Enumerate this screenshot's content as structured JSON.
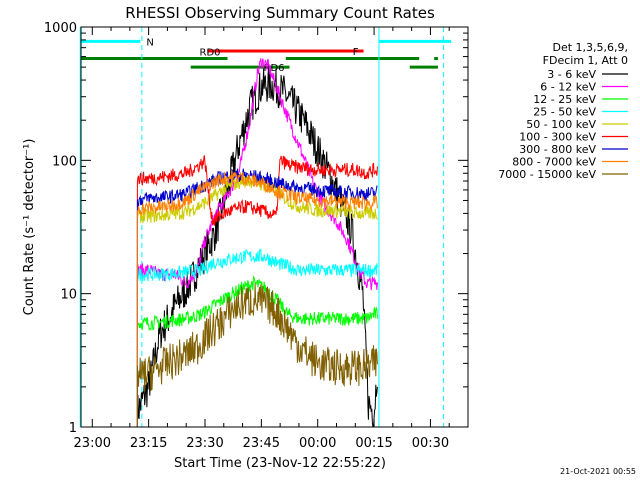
{
  "chart_data": {
    "type": "line",
    "title": "RHESSI Observing Summary Count Rates",
    "xlabel": "Start Time (23-Nov-12 22:55:22)",
    "ylabel": "Count Rate (s⁻¹ detector⁻¹)",
    "yscale": "log",
    "ylim": [
      1,
      1000
    ],
    "xlim_minutes": [
      -3,
      100
    ],
    "x_ticks": [
      {
        "t": 0,
        "label": "23:00"
      },
      {
        "t": 15,
        "label": "23:15"
      },
      {
        "t": 30,
        "label": "23:30"
      },
      {
        "t": 45,
        "label": "23:45"
      },
      {
        "t": 60,
        "label": "00:00"
      },
      {
        "t": 75,
        "label": "00:15"
      },
      {
        "t": 90,
        "label": "00:30"
      }
    ],
    "y_ticks": [
      {
        "v": 1,
        "label": "1"
      },
      {
        "v": 10,
        "label": "10"
      },
      {
        "v": 100,
        "label": "100"
      },
      {
        "v": 1000,
        "label": "1000"
      }
    ],
    "legend_header": [
      "Det 1,3,5,6,9,",
      "FDecim 1, Att 0"
    ],
    "series": [
      {
        "name": "3 - 6 keV",
        "color": "#000000",
        "points": [
          [
            12,
            1.3
          ],
          [
            15,
            2
          ],
          [
            18,
            5
          ],
          [
            22,
            8
          ],
          [
            26,
            12
          ],
          [
            30,
            20
          ],
          [
            33,
            30
          ],
          [
            36,
            60
          ],
          [
            39,
            130
          ],
          [
            42,
            250
          ],
          [
            45,
            360
          ],
          [
            48,
            370
          ],
          [
            51,
            320
          ],
          [
            54,
            250
          ],
          [
            57,
            180
          ],
          [
            60,
            120
          ],
          [
            63,
            80
          ],
          [
            66,
            50
          ],
          [
            69,
            30
          ],
          [
            72,
            10
          ],
          [
            73.5,
            1.5
          ],
          [
            75,
            1.3
          ],
          [
            76,
            3
          ]
        ]
      },
      {
        "name": "6 - 12 keV",
        "color": "#ff00ff",
        "points": [
          [
            12,
            15
          ],
          [
            15,
            15
          ],
          [
            18,
            14
          ],
          [
            22,
            14
          ],
          [
            25,
            12
          ],
          [
            28,
            15
          ],
          [
            30,
            25
          ],
          [
            33,
            40
          ],
          [
            36,
            55
          ],
          [
            39,
            80
          ],
          [
            42,
            200
          ],
          [
            44,
            450
          ],
          [
            45,
            560
          ],
          [
            47,
            500
          ],
          [
            50,
            300
          ],
          [
            53,
            180
          ],
          [
            56,
            110
          ],
          [
            59,
            65
          ],
          [
            62,
            45
          ],
          [
            65,
            35
          ],
          [
            68,
            25
          ],
          [
            71,
            15
          ],
          [
            73,
            12
          ],
          [
            75,
            12
          ],
          [
            76,
            12
          ]
        ]
      },
      {
        "name": "12 - 25 keV",
        "color": "#00ff00",
        "points": [
          [
            12,
            6
          ],
          [
            15,
            6
          ],
          [
            20,
            6.2
          ],
          [
            25,
            6.5
          ],
          [
            29,
            7
          ],
          [
            32,
            8
          ],
          [
            36,
            9.5
          ],
          [
            40,
            11
          ],
          [
            43,
            12
          ],
          [
            46,
            11
          ],
          [
            49,
            9
          ],
          [
            52,
            7
          ],
          [
            55,
            6.5
          ],
          [
            60,
            6.5
          ],
          [
            65,
            6.5
          ],
          [
            70,
            6.5
          ],
          [
            73,
            6.5
          ],
          [
            75,
            7
          ],
          [
            76,
            7
          ]
        ]
      },
      {
        "name": "25 - 50 keV",
        "color": "#00ffff",
        "points": [
          [
            12,
            14
          ],
          [
            15,
            14
          ],
          [
            20,
            14
          ],
          [
            25,
            14.5
          ],
          [
            29,
            15
          ],
          [
            32,
            17
          ],
          [
            36,
            18
          ],
          [
            40,
            19
          ],
          [
            43,
            19
          ],
          [
            46,
            19
          ],
          [
            49,
            17
          ],
          [
            52,
            16
          ],
          [
            55,
            15
          ],
          [
            60,
            15
          ],
          [
            65,
            15
          ],
          [
            70,
            15
          ],
          [
            73,
            15
          ],
          [
            75,
            15
          ],
          [
            76,
            15
          ]
        ]
      },
      {
        "name": "50 - 100 keV",
        "color": "#cccc00",
        "points": [
          [
            12,
            38
          ],
          [
            15,
            38
          ],
          [
            20,
            39
          ],
          [
            25,
            41
          ],
          [
            28,
            45
          ],
          [
            31,
            50
          ],
          [
            34,
            58
          ],
          [
            37,
            65
          ],
          [
            40,
            70
          ],
          [
            43,
            70
          ],
          [
            46,
            65
          ],
          [
            49,
            58
          ],
          [
            52,
            50
          ],
          [
            55,
            45
          ],
          [
            60,
            42
          ],
          [
            65,
            42
          ],
          [
            70,
            40
          ],
          [
            73,
            40
          ],
          [
            75,
            40
          ],
          [
            76,
            40
          ]
        ]
      },
      {
        "name": "100 - 300 keV",
        "color": "#ff0000",
        "points": [
          [
            12,
            73
          ],
          [
            15,
            73
          ],
          [
            20,
            76
          ],
          [
            25,
            80
          ],
          [
            28,
            90
          ],
          [
            30,
            100
          ],
          [
            31,
            55
          ],
          [
            32,
            35
          ],
          [
            35,
            40
          ],
          [
            38,
            43
          ],
          [
            41,
            45
          ],
          [
            44,
            43
          ],
          [
            47,
            40
          ],
          [
            49,
            38
          ],
          [
            50,
            100
          ],
          [
            53,
            90
          ],
          [
            56,
            88
          ],
          [
            60,
            85
          ],
          [
            65,
            85
          ],
          [
            70,
            85
          ],
          [
            73,
            80
          ],
          [
            75,
            85
          ],
          [
            76,
            85
          ]
        ]
      },
      {
        "name": "300 - 800 keV",
        "color": "#0000cc",
        "points": [
          [
            12,
            50
          ],
          [
            15,
            52
          ],
          [
            20,
            53
          ],
          [
            25,
            56
          ],
          [
            28,
            62
          ],
          [
            31,
            68
          ],
          [
            34,
            74
          ],
          [
            37,
            77
          ],
          [
            40,
            78
          ],
          [
            43,
            76
          ],
          [
            46,
            72
          ],
          [
            49,
            68
          ],
          [
            52,
            65
          ],
          [
            55,
            62
          ],
          [
            60,
            60
          ],
          [
            65,
            58
          ],
          [
            70,
            57
          ],
          [
            73,
            56
          ],
          [
            75,
            57
          ],
          [
            76,
            58
          ]
        ]
      },
      {
        "name": "800 - 7000 keV",
        "color": "#ff8000",
        "points": [
          [
            12,
            43
          ],
          [
            15,
            44
          ],
          [
            20,
            45
          ],
          [
            25,
            50
          ],
          [
            28,
            58
          ],
          [
            31,
            65
          ],
          [
            34,
            72
          ],
          [
            37,
            75
          ],
          [
            40,
            74
          ],
          [
            43,
            70
          ],
          [
            46,
            66
          ],
          [
            49,
            60
          ],
          [
            52,
            55
          ],
          [
            55,
            52
          ],
          [
            60,
            50
          ],
          [
            65,
            49
          ],
          [
            70,
            48
          ],
          [
            73,
            48
          ],
          [
            75,
            48
          ],
          [
            76,
            48
          ]
        ]
      },
      {
        "name": "7000 - 15000 keV",
        "color": "#806000",
        "points": [
          [
            12,
            2.4
          ],
          [
            15,
            2.5
          ],
          [
            20,
            3
          ],
          [
            25,
            3.5
          ],
          [
            28,
            4
          ],
          [
            31,
            5
          ],
          [
            34,
            6
          ],
          [
            37,
            7.5
          ],
          [
            40,
            8.5
          ],
          [
            43,
            9
          ],
          [
            46,
            8.5
          ],
          [
            49,
            7.5
          ],
          [
            52,
            5.5
          ],
          [
            55,
            4
          ],
          [
            60,
            3
          ],
          [
            65,
            2.8
          ],
          [
            70,
            2.8
          ],
          [
            73,
            2.8
          ],
          [
            75,
            3
          ],
          [
            76,
            3
          ]
        ]
      }
    ],
    "vertical_lines": [
      {
        "t": -3.2,
        "color": "#00ffff",
        "style": "solid"
      },
      {
        "t": 13.2,
        "color": "#00ffff",
        "style": "dashed"
      },
      {
        "t": 76.3,
        "color": "#00ffff",
        "style": "solid"
      },
      {
        "t": 93.5,
        "color": "#00ffff",
        "style": "dashed"
      }
    ],
    "flag_bars": [
      {
        "label": "N",
        "color": "#00ffff",
        "value": 780,
        "segments": [
          [
            -3.2,
            12.8
          ],
          [
            76.3,
            95.5
          ]
        ]
      },
      {
        "label": "F",
        "color": "#ff0000",
        "value": 660,
        "segments": [
          [
            30.6,
            72.2
          ]
        ]
      },
      {
        "label": "RD0",
        "color": "#008000",
        "value": 580,
        "segments": [
          [
            -3.2,
            36
          ],
          [
            51.5,
            87
          ],
          [
            91,
            92
          ]
        ]
      },
      {
        "label": "RD6",
        "color": "#008000",
        "value": 500,
        "segments": [
          [
            26.2,
            52.5
          ],
          [
            84.5,
            92
          ]
        ]
      }
    ],
    "data_gap_end_t": 76.3,
    "noise": {
      "seed": 7,
      "amplitude": 0.035
    }
  },
  "footer_timestamp": "21-Oct-2021 00:55"
}
